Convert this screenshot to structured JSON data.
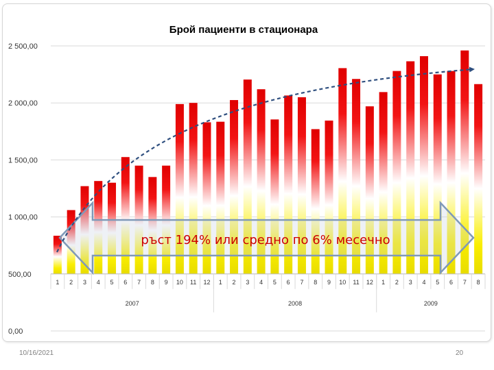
{
  "chart_data": {
    "type": "bar",
    "title": "Брой пациенти в стационара",
    "categories": [
      "1",
      "2",
      "3",
      "4",
      "5",
      "6",
      "7",
      "8",
      "9",
      "10",
      "11",
      "12",
      "1",
      "2",
      "3",
      "4",
      "5",
      "6",
      "7",
      "8",
      "9",
      "10",
      "11",
      "12",
      "1",
      "2",
      "3",
      "4",
      "5",
      "6",
      "7",
      "8"
    ],
    "groups": [
      {
        "label": "2007",
        "count": 12
      },
      {
        "label": "2008",
        "count": 12
      },
      {
        "label": "2009",
        "count": 8
      }
    ],
    "values": [
      835,
      1060,
      1270,
      1315,
      1300,
      1525,
      1450,
      1350,
      1450,
      1990,
      2000,
      1830,
      1835,
      2025,
      2205,
      2120,
      1855,
      2065,
      2050,
      1770,
      1845,
      2305,
      2210,
      1970,
      2095,
      2280,
      2365,
      2410,
      2250,
      2280,
      2460,
      2165
    ],
    "yticks": [
      "0,00",
      "500,00",
      "1 000,00",
      "1 500,00",
      "2 000,00",
      "2 500,00"
    ],
    "ylim": [
      0,
      2500
    ],
    "grid": true,
    "annotation": "ръст 194% или средно по 6% месечно",
    "colors": {
      "bar_top": "#e00000",
      "bar_mid": "#ffffff",
      "bar_bottom": "#f2e600",
      "trend": "#2f4f7f",
      "arrow": "#7f99b8",
      "grid": "#d9d9d9",
      "title": "#000000"
    }
  },
  "footer": {
    "date": "10/16/2021",
    "page": "20"
  }
}
